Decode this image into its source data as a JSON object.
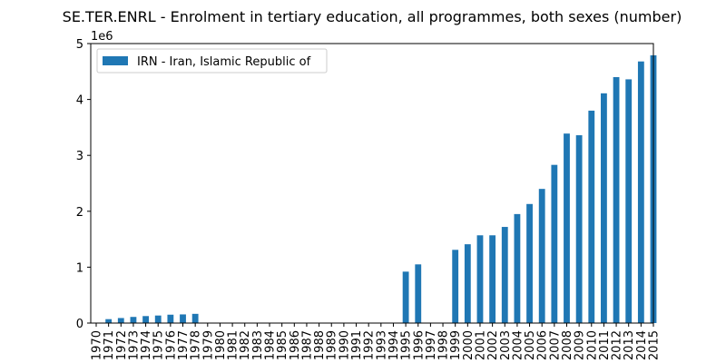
{
  "chart_data": {
    "type": "bar",
    "title": "SE.TER.ENRL - Enrolment in tertiary education, all programmes, both sexes (number)",
    "xlabel": "",
    "ylabel": "",
    "y_scale_label": "1e6",
    "ylim": [
      0,
      5000000
    ],
    "yticks": [
      0,
      1000000,
      2000000,
      3000000,
      4000000,
      5000000
    ],
    "ytick_labels": [
      "0",
      "1",
      "2",
      "3",
      "4",
      "5"
    ],
    "legend_placement": "top-left",
    "grid": false,
    "bar_color": "#1f77b4",
    "categories": [
      "1970",
      "1971",
      "1972",
      "1973",
      "1974",
      "1975",
      "1976",
      "1977",
      "1978",
      "1979",
      "1980",
      "1981",
      "1982",
      "1983",
      "1984",
      "1985",
      "1986",
      "1987",
      "1988",
      "1989",
      "1990",
      "1991",
      "1992",
      "1993",
      "1994",
      "1995",
      "1996",
      "1997",
      "1998",
      "1999",
      "2000",
      "2001",
      "2002",
      "2003",
      "2004",
      "2005",
      "2006",
      "2007",
      "2008",
      "2009",
      "2010",
      "2011",
      "2012",
      "2013",
      "2014",
      "2015"
    ],
    "series": [
      {
        "name": "IRN - Iran, Islamic Republic of",
        "values": [
          null,
          70000,
          90000,
          110000,
          125000,
          135000,
          150000,
          155000,
          165000,
          null,
          null,
          null,
          null,
          null,
          null,
          null,
          null,
          null,
          null,
          null,
          null,
          null,
          null,
          null,
          null,
          920000,
          1050000,
          null,
          null,
          1310000,
          1410000,
          1570000,
          1570000,
          1720000,
          1950000,
          2130000,
          2400000,
          2830000,
          3390000,
          3360000,
          3800000,
          4110000,
          4400000,
          4360000,
          4680000,
          4790000
        ]
      }
    ]
  }
}
